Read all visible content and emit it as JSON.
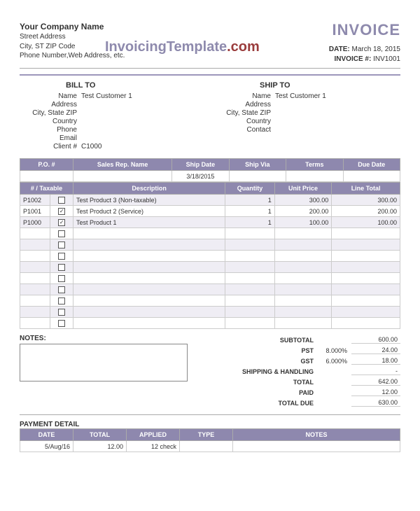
{
  "company": {
    "name": "Your Company Name",
    "line1": "Street Address",
    "line2": "City, ST  ZIP Code",
    "line3": "Phone Number,Web Address, etc."
  },
  "title": "INVOICE",
  "watermark_a": "InvoicingTemplate",
  "watermark_b": ".com",
  "meta": {
    "date_label": "DATE:",
    "date": "March 18, 2015",
    "invno_label": "INVOICE #:",
    "invno": "INV1001"
  },
  "billto": {
    "title": "BILL TO",
    "fields": [
      {
        "lab": "Name",
        "val": "Test Customer 1"
      },
      {
        "lab": "Address",
        "val": ""
      },
      {
        "lab": "City, State ZIP",
        "val": ""
      },
      {
        "lab": "Country",
        "val": ""
      },
      {
        "lab": "Phone",
        "val": ""
      },
      {
        "lab": "Email",
        "val": ""
      },
      {
        "lab": "Client #",
        "val": "C1000"
      }
    ]
  },
  "shipto": {
    "title": "SHIP TO",
    "fields": [
      {
        "lab": "Name",
        "val": "Test Customer 1"
      },
      {
        "lab": "Address",
        "val": ""
      },
      {
        "lab": "City, State ZIP",
        "val": ""
      },
      {
        "lab": "Country",
        "val": ""
      },
      {
        "lab": "Contact",
        "val": ""
      }
    ]
  },
  "order_header": {
    "cols": [
      "P.O. #",
      "Sales Rep. Name",
      "Ship Date",
      "Ship Via",
      "Terms",
      "Due Date"
    ],
    "row": [
      "",
      "",
      "3/18/2015",
      "",
      "",
      ""
    ]
  },
  "items_header": [
    "# / Taxable",
    "Description",
    "Quantity",
    "Unit Price",
    "Line Total"
  ],
  "items": [
    {
      "id": "P1002",
      "tax": false,
      "desc": "Test Product 3 (Non-taxable)",
      "qty": "1",
      "price": "300.00",
      "total": "300.00"
    },
    {
      "id": "P1001",
      "tax": true,
      "desc": "Test Product 2 (Service)",
      "qty": "1",
      "price": "200.00",
      "total": "200.00"
    },
    {
      "id": "P1000",
      "tax": true,
      "desc": "Test Product 1",
      "qty": "1",
      "price": "100.00",
      "total": "100.00"
    }
  ],
  "empty_item_rows": 9,
  "totals": [
    {
      "lab": "SUBTOTAL",
      "pct": "",
      "val": "600.00"
    },
    {
      "lab": "PST",
      "pct": "8.000%",
      "val": "24.00"
    },
    {
      "lab": "GST",
      "pct": "6.000%",
      "val": "18.00"
    },
    {
      "lab": "SHIPPING & HANDLING",
      "pct": "",
      "val": "-"
    },
    {
      "lab": "TOTAL",
      "pct": "",
      "val": "642.00"
    },
    {
      "lab": "PAID",
      "pct": "",
      "val": "12.00"
    },
    {
      "lab": "TOTAL DUE",
      "pct": "",
      "val": "630.00"
    }
  ],
  "notes_label": "NOTES:",
  "payment": {
    "title": "PAYMENT DETAIL",
    "cols": [
      "DATE",
      "TOTAL",
      "APPLIED",
      "TYPE",
      "NOTES"
    ],
    "rows": [
      {
        "date": "5/Aug/16",
        "total": "12.00",
        "applied": "12",
        "type": "check",
        "notes": ""
      }
    ]
  },
  "colors": {
    "header_bg": "#8e88ae",
    "accent": "#8e8aad",
    "stripe": "#efedf4"
  }
}
